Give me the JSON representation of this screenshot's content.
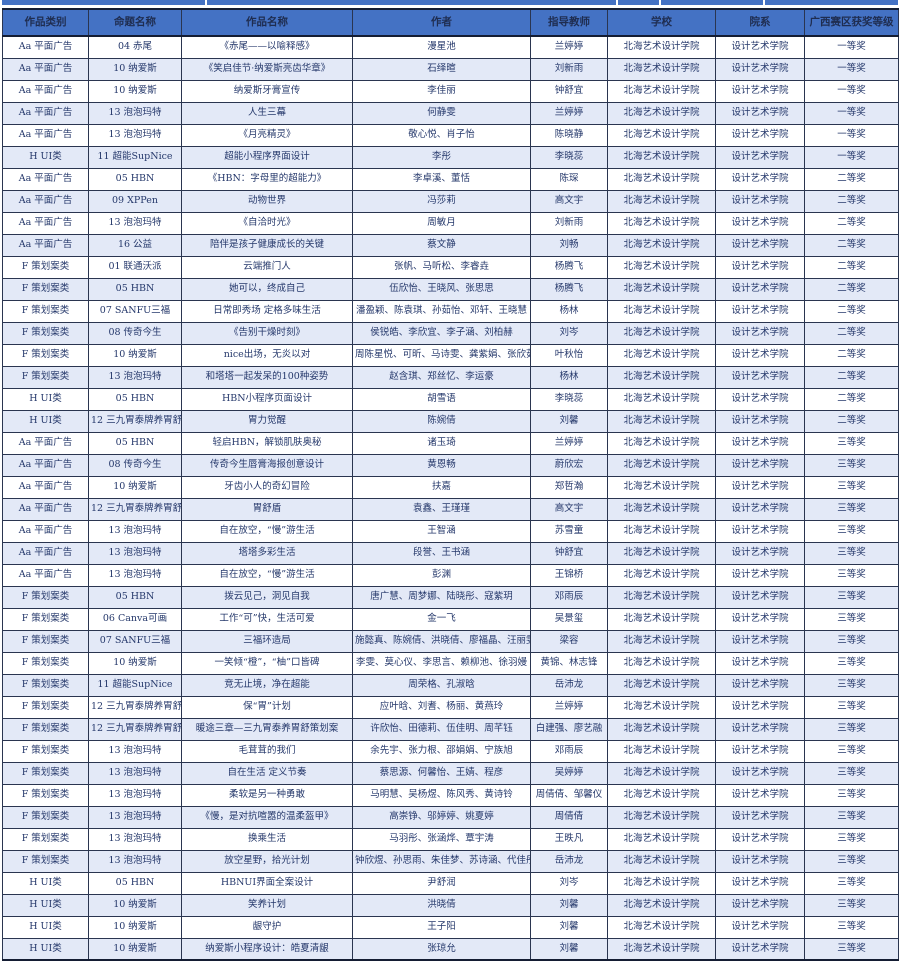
{
  "colors": {
    "header_bg": "#4472C4",
    "header_text": "#1f2d50",
    "row_alt_bg": "#e3e9f7",
    "body_text": "#25386b",
    "border": "#2a3550",
    "accent_strip": "#4472C4"
  },
  "table": {
    "columns": [
      {
        "key": "category",
        "label": "作品类别"
      },
      {
        "key": "topic",
        "label": "命题名称"
      },
      {
        "key": "work",
        "label": "作品名称"
      },
      {
        "key": "authors",
        "label": "作者"
      },
      {
        "key": "teacher",
        "label": "指导教师"
      },
      {
        "key": "school",
        "label": "学校"
      },
      {
        "key": "dept",
        "label": "院系"
      },
      {
        "key": "award",
        "label": "广西赛区获奖等级"
      }
    ],
    "rows": [
      [
        "Aa 平面广告",
        "04 赤尾",
        "《赤尾——以喻释感》",
        "漫星池",
        "兰婷婷",
        "北海艺术设计学院",
        "设计艺术学院",
        "一等奖"
      ],
      [
        "Aa 平面广告",
        "10 纳爱斯",
        "《笑启佳节·纳爱斯亮齿华章》",
        "石绎暄",
        "刘新雨",
        "北海艺术设计学院",
        "设计艺术学院",
        "一等奖"
      ],
      [
        "Aa 平面广告",
        "10 纳爱斯",
        "纳爱斯牙膏宣传",
        "李佳丽",
        "钟舒宜",
        "北海艺术设计学院",
        "设计艺术学院",
        "一等奖"
      ],
      [
        "Aa 平面广告",
        "13 泡泡玛特",
        "人生三幕",
        "何静雯",
        "兰婷婷",
        "北海艺术设计学院",
        "设计艺术学院",
        "一等奖"
      ],
      [
        "Aa 平面广告",
        "13 泡泡玛特",
        "《月亮精灵》",
        "敬心悦、肖子怡",
        "陈晓静",
        "北海艺术设计学院",
        "设计艺术学院",
        "一等奖"
      ],
      [
        "H UI类",
        "11 超能SupNice",
        "超能小程序界面设计",
        "李彤",
        "李晓蕊",
        "北海艺术设计学院",
        "设计艺术学院",
        "一等奖"
      ],
      [
        "Aa 平面广告",
        "05 HBN",
        "《HBN：字母里的超能力》",
        "李卓溪、董恬",
        "陈琛",
        "北海艺术设计学院",
        "设计艺术学院",
        "二等奖"
      ],
      [
        "Aa 平面广告",
        "09 XPPen",
        "动物世界",
        "冯莎莉",
        "高文宇",
        "北海艺术设计学院",
        "设计艺术学院",
        "二等奖"
      ],
      [
        "Aa 平面广告",
        "13 泡泡玛特",
        "《自洽时光》",
        "周敏月",
        "刘新雨",
        "北海艺术设计学院",
        "设计艺术学院",
        "二等奖"
      ],
      [
        "Aa 平面广告",
        "16 公益",
        "陪伴是孩子健康成长的关键",
        "蔡文静",
        "刘畅",
        "北海艺术设计学院",
        "设计艺术学院",
        "二等奖"
      ],
      [
        "F 策划案类",
        "01 联通沃派",
        "云端推门人",
        "张帆、马听松、李睿垚",
        "杨腾飞",
        "北海艺术设计学院",
        "设计艺术学院",
        "二等奖"
      ],
      [
        "F 策划案类",
        "05 HBN",
        "她可以，终成自己",
        "伍欣怡、王晓风、张思思",
        "杨腾飞",
        "北海艺术设计学院",
        "设计艺术学院",
        "二等奖"
      ],
      [
        "F 策划案类",
        "07 SANFU三福",
        "日常即秀场 定格多味生活",
        "潘盈颖、陈袁琪、孙茹怡、邓轩、王晓慧",
        "杨林",
        "北海艺术设计学院",
        "设计艺术学院",
        "二等奖"
      ],
      [
        "F 策划案类",
        "08 传奇今生",
        "《告别干燥时刻》",
        "侯锐皓、李欣宜、李子涵、刘柏赫",
        "刘岑",
        "北海艺术设计学院",
        "设计艺术学院",
        "二等奖"
      ],
      [
        "F 策划案类",
        "10 纳爱斯",
        "nice出场，无炎以对",
        "周陈星悦、可昕、马诗雯、龚紫娟、张欣茹",
        "叶秋怡",
        "北海艺术设计学院",
        "设计艺术学院",
        "二等奖"
      ],
      [
        "F 策划案类",
        "13 泡泡玛特",
        "和塔塔一起发呆的100种姿势",
        "赵含琪、郑丝忆、李运豪",
        "杨林",
        "北海艺术设计学院",
        "设计艺术学院",
        "二等奖"
      ],
      [
        "H UI类",
        "05 HBN",
        "HBN小程序页面设计",
        "胡雪语",
        "李晓蕊",
        "北海艺术设计学院",
        "设计艺术学院",
        "二等奖"
      ],
      [
        "H UI类",
        "12 三九胃泰牌养胃舒",
        "胃力觉醒",
        "陈婉倩",
        "刘馨",
        "北海艺术设计学院",
        "设计艺术学院",
        "二等奖"
      ],
      [
        "Aa 平面广告",
        "05 HBN",
        "轻启HBN，解锁肌肤奥秘",
        "诸玉琦",
        "兰婷婷",
        "北海艺术设计学院",
        "设计艺术学院",
        "三等奖"
      ],
      [
        "Aa 平面广告",
        "08 传奇今生",
        "传奇今生唇膏海报创意设计",
        "黄恩畅",
        "蔚欣宏",
        "北海艺术设计学院",
        "设计艺术学院",
        "三等奖"
      ],
      [
        "Aa 平面广告",
        "10 纳爱斯",
        "牙齿小人的奇幻冒险",
        "扶嘉",
        "郑哲瀚",
        "北海艺术设计学院",
        "设计艺术学院",
        "三等奖"
      ],
      [
        "Aa 平面广告",
        "12 三九胃泰牌养胃舒",
        "胃舒盾",
        "袁鑫、王瑾瑾",
        "高文宇",
        "北海艺术设计学院",
        "设计艺术学院",
        "三等奖"
      ],
      [
        "Aa 平面广告",
        "13 泡泡玛特",
        "自在放空，“慢”游生活",
        "王智涵",
        "苏雪童",
        "北海艺术设计学院",
        "设计艺术学院",
        "三等奖"
      ],
      [
        "Aa 平面广告",
        "13 泡泡玛特",
        "塔塔多彩生活",
        "段誉、王书涵",
        "钟舒宜",
        "北海艺术设计学院",
        "设计艺术学院",
        "三等奖"
      ],
      [
        "Aa 平面广告",
        "13 泡泡玛特",
        "自在放空，“慢”游生活",
        "彭渊",
        "王锦桥",
        "北海艺术设计学院",
        "设计艺术学院",
        "三等奖"
      ],
      [
        "F 策划案类",
        "05 HBN",
        "拨云见己，洞见自我",
        "唐广慧、周梦娜、陆晓彤、寇紫玥",
        "邓雨辰",
        "北海艺术设计学院",
        "设计艺术学院",
        "三等奖"
      ],
      [
        "F 策划案类",
        "06 Canva可画",
        "工作“可”快，生活可爱",
        "金一飞",
        "吴景玺",
        "北海艺术设计学院",
        "设计艺术学院",
        "三等奖"
      ],
      [
        "F 策划案类",
        "07 SANFU三福",
        "三福环造局",
        "施懿真、陈婉倩、洪晓倩、廖福晶、汪丽雯",
        "梁容",
        "北海艺术设计学院",
        "设计艺术学院",
        "三等奖"
      ],
      [
        "F 策划案类",
        "10 纳爱斯",
        "一笑倾“橙”，“柚”口皆碑",
        "李雯、莫心仪、李思言、赖柳池、徐羽嫚",
        "黄锦、林志锋",
        "北海艺术设计学院",
        "设计艺术学院",
        "三等奖"
      ],
      [
        "F 策划案类",
        "11 超能SupNice",
        "竞无止境，净在超能",
        "周荣格、孔淑晗",
        "岳沛龙",
        "北海艺术设计学院",
        "设计艺术学院",
        "三等奖"
      ],
      [
        "F 策划案类",
        "12 三九胃泰牌养胃舒",
        "保“胃”计划",
        "应叶晗、刘耆、杨丽、黄燕玲",
        "兰婷婷",
        "北海艺术设计学院",
        "设计艺术学院",
        "三等奖"
      ],
      [
        "F 策划案类",
        "12 三九胃泰牌养胃舒",
        "暖途三章—三九胃泰养胃舒策划案",
        "许欣怡、田德莉、伍佳明、周芊钰",
        "白建强、廖艺融",
        "北海艺术设计学院",
        "设计艺术学院",
        "三等奖"
      ],
      [
        "F 策划案类",
        "13 泡泡玛特",
        "毛茸茸的我们",
        "余先宇、张力根、邵娟娟、宁族旭",
        "邓雨辰",
        "北海艺术设计学院",
        "设计艺术学院",
        "三等奖"
      ],
      [
        "F 策划案类",
        "13 泡泡玛特",
        "自在生活 定义节奏",
        "蔡思源、何馨怡、王婧、程彦",
        "吴婷婷",
        "北海艺术设计学院",
        "设计艺术学院",
        "三等奖"
      ],
      [
        "F 策划案类",
        "13 泡泡玛特",
        "柔软是另一种勇敢",
        "马明慧、吴杨煜、陈风秀、黄诗铃",
        "周倩倩、邹馨仪",
        "北海艺术设计学院",
        "设计艺术学院",
        "三等奖"
      ],
      [
        "F 策划案类",
        "13 泡泡玛特",
        "《慢，是对抗喧嚣的温柔盔甲》",
        "高崇铮、邬婷婷、姚夏婷",
        "周倩倩",
        "北海艺术设计学院",
        "设计艺术学院",
        "三等奖"
      ],
      [
        "F 策划案类",
        "13 泡泡玛特",
        "换乘生活",
        "马羽彤、张涵烨、覃宇涛",
        "王昳凡",
        "北海艺术设计学院",
        "设计艺术学院",
        "三等奖"
      ],
      [
        "F 策划案类",
        "13 泡泡玛特",
        "放空星野，拾光计划",
        "钟欣煜、孙思雨、朱佳梦、苏诗涵、代佳彤",
        "岳沛龙",
        "北海艺术设计学院",
        "设计艺术学院",
        "三等奖"
      ],
      [
        "H UI类",
        "05 HBN",
        "HBNUI界面全案设计",
        "尹舒润",
        "刘岑",
        "北海艺术设计学院",
        "设计艺术学院",
        "三等奖"
      ],
      [
        "H UI类",
        "10 纳爱斯",
        "笑养计划",
        "洪晓倩",
        "刘馨",
        "北海艺术设计学院",
        "设计艺术学院",
        "三等奖"
      ],
      [
        "H UI类",
        "10 纳爱斯",
        "龈守护",
        "王子阳",
        "刘馨",
        "北海艺术设计学院",
        "设计艺术学院",
        "三等奖"
      ],
      [
        "H UI类",
        "10 纳爱斯",
        "纳爱斯小程序设计：皓夏清龈",
        "张琼允",
        "刘馨",
        "北海艺术设计学院",
        "设计艺术学院",
        "三等奖"
      ]
    ]
  }
}
